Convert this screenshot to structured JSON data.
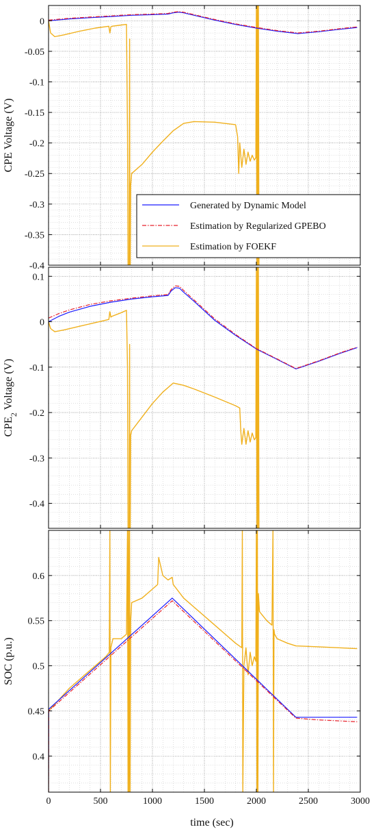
{
  "colors": {
    "dynamic": "#1a1aff",
    "gpebo": "#e8202a",
    "foekf": "#f0b01c",
    "axis": "#000000",
    "grid": "#bdbdbd"
  },
  "legend": {
    "dynamic": "Generated by Dynamic Model",
    "gpebo": "Estimation by Regularized GPEBO",
    "foekf": "Estimation by FOEKF"
  },
  "xlabel": "time (sec)",
  "chart_data": [
    {
      "type": "line",
      "ylabel": "CPE Voltage (V)",
      "xlim": [
        0,
        3000
      ],
      "ylim": [
        -0.4,
        0.025
      ],
      "xticks": [
        0,
        500,
        1000,
        1500,
        2000,
        2500,
        3000
      ],
      "yticks": [
        0,
        -0.05,
        -0.1,
        -0.15,
        -0.2,
        -0.25,
        -0.3,
        -0.35,
        -0.4
      ],
      "ytick_labels": [
        "0",
        "-0.05",
        "-0.1",
        "-0.15",
        "-0.2",
        "-0.25",
        "-0.3",
        "-0.35",
        "-0.4"
      ],
      "grid": true,
      "legend_position": "lower-right",
      "series": [
        {
          "key": "dynamic",
          "name": "Generated by Dynamic Model",
          "style": "solid",
          "x": [
            0,
            200,
            400,
            600,
            800,
            1000,
            1150,
            1200,
            1250,
            1300,
            1400,
            1600,
            1800,
            2000,
            2200,
            2400,
            2600,
            2800,
            2970
          ],
          "y": [
            0,
            0.003,
            0.005,
            0.007,
            0.009,
            0.01,
            0.011,
            0.013,
            0.014,
            0.013,
            0.009,
            0.001,
            -0.006,
            -0.012,
            -0.017,
            -0.021,
            -0.018,
            -0.014,
            -0.011
          ]
        },
        {
          "key": "gpebo",
          "name": "Estimation by Regularized GPEBO",
          "style": "dashdot",
          "x": [
            0,
            200,
            400,
            600,
            800,
            1000,
            1150,
            1200,
            1250,
            1300,
            1400,
            1600,
            1800,
            2000,
            2200,
            2400,
            2600,
            2800,
            2970
          ],
          "y": [
            0.001,
            0.004,
            0.006,
            0.008,
            0.01,
            0.011,
            0.012,
            0.014,
            0.015,
            0.014,
            0.01,
            0.002,
            -0.005,
            -0.011,
            -0.016,
            -0.02,
            -0.017,
            -0.013,
            -0.01
          ]
        },
        {
          "key": "foekf",
          "name": "Estimation by FOEKF",
          "style": "solid",
          "x": [
            0,
            20,
            60,
            150,
            300,
            450,
            580,
            590,
            600,
            610,
            700,
            750,
            760,
            765,
            770,
            775,
            780,
            783,
            786,
            790,
            800,
            900,
            1000,
            1100,
            1200,
            1300,
            1400,
            1600,
            1800,
            1820,
            1830,
            1840,
            1860,
            1880,
            1900,
            1920,
            1940,
            1960,
            1980,
            1995,
            2000,
            2005,
            2010,
            2015,
            2020,
            2025
          ],
          "y": [
            0,
            -0.02,
            -0.026,
            -0.023,
            -0.017,
            -0.012,
            -0.009,
            -0.02,
            -0.01,
            -0.009,
            -0.007,
            -0.006,
            -0.18,
            -0.4,
            -0.4,
            -0.4,
            -0.03,
            -0.4,
            -0.4,
            -0.27,
            -0.25,
            -0.235,
            -0.215,
            -0.197,
            -0.18,
            -0.168,
            -0.165,
            -0.166,
            -0.17,
            -0.19,
            -0.25,
            -0.2,
            -0.24,
            -0.21,
            -0.235,
            -0.215,
            -0.23,
            -0.22,
            -0.228,
            -0.224,
            0.03,
            -0.4,
            0.03,
            -0.4,
            0.03,
            -0.4
          ]
        }
      ]
    },
    {
      "type": "line",
      "ylabel": "CPE2 Voltage (V)",
      "ylabel_main": "CPE",
      "ylabel_sub": "2",
      "ylabel_rest": " Voltage (V)",
      "xlim": [
        0,
        3000
      ],
      "ylim": [
        -0.455,
        0.12
      ],
      "xticks": [
        0,
        500,
        1000,
        1500,
        2000,
        2500,
        3000
      ],
      "yticks": [
        0.1,
        0,
        -0.1,
        -0.2,
        -0.3,
        -0.4
      ],
      "ytick_labels": [
        "0.1",
        "0",
        "-0.1",
        "-0.2",
        "-0.3",
        "-0.4"
      ],
      "grid": true,
      "series": [
        {
          "key": "dynamic",
          "name": "Generated by Dynamic Model",
          "style": "solid",
          "x": [
            0,
            100,
            200,
            400,
            600,
            800,
            1000,
            1150,
            1180,
            1220,
            1260,
            1300,
            1400,
            1600,
            1800,
            2000,
            2200,
            2380,
            2600,
            2800,
            2970
          ],
          "y": [
            0,
            0.012,
            0.021,
            0.034,
            0.043,
            0.05,
            0.055,
            0.058,
            0.068,
            0.075,
            0.074,
            0.065,
            0.045,
            0.003,
            -0.03,
            -0.06,
            -0.083,
            -0.104,
            -0.087,
            -0.07,
            -0.057
          ]
        },
        {
          "key": "gpebo",
          "name": "Estimation by Regularized GPEBO",
          "style": "dashdot",
          "x": [
            0,
            100,
            200,
            400,
            600,
            800,
            1000,
            1150,
            1180,
            1220,
            1260,
            1300,
            1400,
            1600,
            1800,
            2000,
            2200,
            2380,
            2600,
            2800,
            2970
          ],
          "y": [
            0.008,
            0.018,
            0.026,
            0.038,
            0.046,
            0.052,
            0.057,
            0.06,
            0.071,
            0.079,
            0.078,
            0.069,
            0.048,
            0.006,
            -0.028,
            -0.059,
            -0.082,
            -0.103,
            -0.086,
            -0.069,
            -0.056
          ]
        },
        {
          "key": "foekf",
          "name": "Estimation by FOEKF",
          "style": "solid",
          "x": [
            0,
            20,
            60,
            150,
            300,
            450,
            580,
            590,
            600,
            610,
            700,
            750,
            760,
            765,
            770,
            775,
            780,
            783,
            786,
            790,
            800,
            900,
            1000,
            1100,
            1200,
            1300,
            1400,
            1600,
            1800,
            1840,
            1850,
            1860,
            1880,
            1900,
            1920,
            1940,
            1960,
            1980,
            1995,
            2000,
            2005,
            2010,
            2015,
            2020,
            2025
          ],
          "y": [
            0,
            -0.015,
            -0.022,
            -0.018,
            -0.01,
            -0.002,
            0.005,
            0.022,
            0.01,
            0.012,
            0.02,
            0.025,
            -0.1,
            -0.455,
            -0.455,
            -0.455,
            -0.05,
            -0.455,
            -0.455,
            -0.25,
            -0.24,
            -0.21,
            -0.18,
            -0.155,
            -0.135,
            -0.14,
            -0.148,
            -0.166,
            -0.185,
            -0.19,
            -0.24,
            -0.27,
            -0.235,
            -0.27,
            -0.24,
            -0.265,
            -0.245,
            -0.26,
            -0.255,
            0.12,
            -0.455,
            0.12,
            -0.455,
            0.12,
            -0.455
          ]
        }
      ]
    },
    {
      "type": "line",
      "ylabel": "SOC (p.u.)",
      "xlim": [
        0,
        3000
      ],
      "ylim": [
        0.36,
        0.65
      ],
      "xticks": [
        0,
        500,
        1000,
        1500,
        2000,
        2500,
        3000
      ],
      "xtick_labels": [
        "0",
        "500",
        "1000",
        "1500",
        "2000",
        "2500",
        "3000"
      ],
      "yticks": [
        0.6,
        0.55,
        0.5,
        0.45,
        0.4
      ],
      "ytick_labels": [
        "0.6",
        "0.55",
        "0.5",
        "0.45",
        "0.4"
      ],
      "grid": true,
      "series": [
        {
          "key": "dynamic",
          "name": "Generated by Dynamic Model",
          "style": "solid",
          "x": [
            0,
            2,
            1190,
            2380,
            2970
          ],
          "y": [
            0.36,
            0.452,
            0.575,
            0.443,
            0.443
          ]
        },
        {
          "key": "gpebo",
          "name": "Estimation by Regularized GPEBO",
          "style": "dashdot",
          "x": [
            0,
            2,
            1190,
            2380,
            2600,
            2970
          ],
          "y": [
            0.36,
            0.45,
            0.572,
            0.442,
            0.44,
            0.438
          ]
        },
        {
          "key": "foekf",
          "name": "Estimation by FOEKF",
          "style": "solid",
          "x": [
            0,
            2,
            200,
            400,
            550,
            585,
            590,
            595,
            600,
            620,
            700,
            750,
            760,
            765,
            770,
            775,
            780,
            785,
            790,
            800,
            900,
            1000,
            1050,
            1060,
            1100,
            1150,
            1190,
            1200,
            1300,
            1400,
            1500,
            1600,
            1700,
            1800,
            1860,
            1865,
            1870,
            1880,
            1900,
            1920,
            1940,
            1960,
            1980,
            1995,
            2000,
            2005,
            2010,
            2015,
            2020,
            2030,
            2100,
            2150,
            2160,
            2165,
            2170,
            2175,
            2200,
            2300,
            2380,
            2600,
            2970
          ],
          "y": [
            0.36,
            0.45,
            0.475,
            0.495,
            0.51,
            0.515,
            0.65,
            0.36,
            0.52,
            0.53,
            0.53,
            0.535,
            0.65,
            0.36,
            0.65,
            0.36,
            0.65,
            0.36,
            0.55,
            0.57,
            0.575,
            0.585,
            0.59,
            0.62,
            0.6,
            0.595,
            0.598,
            0.59,
            0.575,
            0.565,
            0.555,
            0.545,
            0.535,
            0.525,
            0.52,
            0.65,
            0.36,
            0.5,
            0.52,
            0.49,
            0.515,
            0.5,
            0.51,
            0.505,
            0.65,
            0.36,
            0.65,
            0.36,
            0.58,
            0.56,
            0.55,
            0.545,
            0.65,
            0.36,
            0.54,
            0.535,
            0.53,
            0.525,
            0.522,
            0.521,
            0.519
          ]
        }
      ]
    }
  ]
}
